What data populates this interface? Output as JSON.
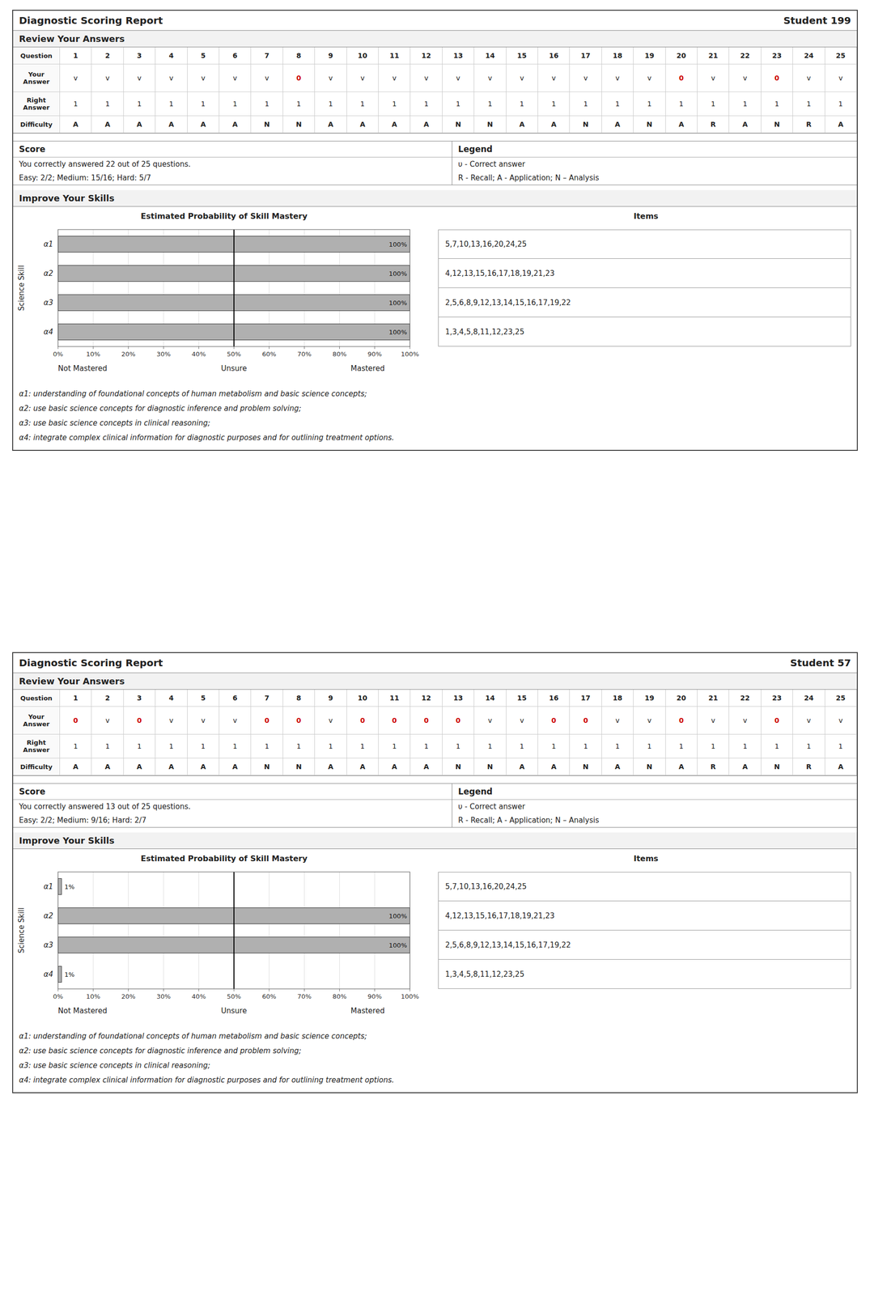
{
  "chart_data": [
    {
      "type": "bar",
      "orientation": "horizontal",
      "title": "Estimated Probability of Skill Mastery",
      "y_label": "Science Skill",
      "categories": [
        "α4",
        "α3",
        "α2",
        "α1"
      ],
      "values": [
        100,
        100,
        100,
        100
      ],
      "value_labels": [
        "100%",
        "100%",
        "100%",
        "100%"
      ],
      "data_labels": true,
      "color": "#b0b0b0",
      "xlim": [
        0,
        100
      ],
      "xticks": [
        {
          "value": 0,
          "label": "0%"
        },
        {
          "value": 10,
          "label": "10%"
        },
        {
          "value": 20,
          "label": "20%"
        },
        {
          "value": 30,
          "label": "30%"
        },
        {
          "value": 40,
          "label": "40%"
        },
        {
          "value": 50,
          "label": "50%"
        },
        {
          "value": 60,
          "label": "60%"
        },
        {
          "value": 70,
          "label": "70%"
        },
        {
          "value": 80,
          "label": "80%"
        },
        {
          "value": 90,
          "label": "90%"
        },
        {
          "value": 100,
          "label": "100%"
        }
      ],
      "grid": true,
      "threshold": 50,
      "annotations": [
        "Not Mastered",
        "Unsure",
        "Mastered"
      ]
    },
    {
      "type": "bar",
      "orientation": "horizontal",
      "title": "Estimated Probability of Skill Mastery",
      "y_label": "Science Skill",
      "categories": [
        "α4",
        "α3",
        "α2",
        "α1"
      ],
      "values": [
        1,
        100,
        100,
        1
      ],
      "value_labels": [
        "1%",
        "100%",
        "100%",
        "1%"
      ],
      "data_labels": true,
      "color": "#b0b0b0",
      "xlim": [
        0,
        100
      ],
      "xticks": [
        {
          "value": 0,
          "label": "0%"
        },
        {
          "value": 10,
          "label": "10%"
        },
        {
          "value": 20,
          "label": "20%"
        },
        {
          "value": 30,
          "label": "30%"
        },
        {
          "value": 40,
          "label": "40%"
        },
        {
          "value": 50,
          "label": "50%"
        },
        {
          "value": 60,
          "label": "60%"
        },
        {
          "value": 70,
          "label": "70%"
        },
        {
          "value": 80,
          "label": "80%"
        },
        {
          "value": 90,
          "label": "90%"
        },
        {
          "value": 100,
          "label": "100%"
        }
      ],
      "grid": true,
      "threshold": 50,
      "annotations": [
        "Not Mastered",
        "Unsure",
        "Mastered"
      ]
    }
  ],
  "report": {
    "title": "Diagnostic Scoring Report",
    "section_answers": "Review Your Answers",
    "row_labels": [
      "Question",
      "Your\nAnswer",
      "Right\nAnswer",
      "Difficulty"
    ],
    "questions": [
      1,
      2,
      3,
      4,
      5,
      6,
      7,
      8,
      9,
      10,
      11,
      12,
      13,
      14,
      15,
      16,
      17,
      18,
      19,
      20,
      21,
      22,
      23,
      24,
      25
    ],
    "score_heading": "Score",
    "legend_heading": "Legend",
    "legend_lines": [
      "υ - Correct answer",
      "R - Recall;   A - Application;   N – Analysis"
    ],
    "section_skills": "Improve Your Skills",
    "items_heading": "Items",
    "skill_descriptions": [
      "α1: understanding of foundational concepts of human metabolism and basic science concepts;",
      "α2: use basic science concepts for diagnostic inference and problem solving;",
      "α3: use basic science concepts in clinical reasoning;",
      "α4: integrate complex clinical information for diagnostic purposes and for outlining treatment options."
    ],
    "wrong_color": "#cc0000",
    "students": [
      {
        "id": "Student 199",
        "answers": [
          "v",
          "v",
          "v",
          "v",
          "v",
          "v",
          "v",
          "0",
          "v",
          "v",
          "v",
          "v",
          "v",
          "v",
          "v",
          "v",
          "v",
          "v",
          "v",
          "0",
          "v",
          "v",
          "0",
          "v",
          "v"
        ],
        "right_answers": [
          1,
          1,
          1,
          1,
          1,
          1,
          1,
          1,
          1,
          1,
          1,
          1,
          1,
          1,
          1,
          1,
          1,
          1,
          1,
          1,
          1,
          1,
          1,
          1,
          1
        ],
        "wrong_indices": [
          7,
          19,
          22
        ],
        "difficulty": [
          "A",
          "A",
          "A",
          "A",
          "A",
          "A",
          "N",
          "N",
          "A",
          "A",
          "A",
          "A",
          "N",
          "N",
          "A",
          "A",
          "N",
          "A",
          "N",
          "A",
          "R",
          "A",
          "N",
          "R",
          "A"
        ],
        "score_text": "You correctly answered 22 out of 25 questions.",
        "easy_medium_hard": "Easy: 2/2;  Medium: 15/16;   Hard:  5/7",
        "items": [
          "5,7,10,13,16,20,24,25",
          "4,12,13,15,16,17,18,19,21,23",
          "2,5,6,8,9,12,13,14,15,16,17,19,22",
          "1,3,4,5,8,11,12,23,25"
        ]
      },
      {
        "id": "Student 57",
        "answers": [
          "0",
          "v",
          "0",
          "v",
          "v",
          "v",
          "0",
          "0",
          "v",
          "0",
          "0",
          "0",
          "0",
          "v",
          "v",
          "0",
          "0",
          "v",
          "v",
          "0",
          "v",
          "v",
          "0",
          "v",
          "v"
        ],
        "right_answers": [
          1,
          1,
          1,
          1,
          1,
          1,
          1,
          1,
          1,
          1,
          1,
          1,
          1,
          1,
          1,
          1,
          1,
          1,
          1,
          1,
          1,
          1,
          1,
          1,
          1
        ],
        "wrong_indices": [
          0,
          2,
          6,
          7,
          9,
          10,
          11,
          12,
          15,
          16,
          19,
          22
        ],
        "difficulty": [
          "A",
          "A",
          "A",
          "A",
          "A",
          "A",
          "N",
          "N",
          "A",
          "A",
          "A",
          "A",
          "N",
          "N",
          "A",
          "A",
          "N",
          "A",
          "N",
          "A",
          "R",
          "A",
          "N",
          "R",
          "A"
        ],
        "score_text": "You correctly answered 13 out of 25 questions.",
        "easy_medium_hard": "Easy: 2/2;  Medium: 9/16;   Hard:  2/7",
        "items": [
          "5,7,10,13,16,20,24,25",
          "4,12,13,15,16,17,18,19,21,23",
          "2,5,6,8,9,12,13,14,15,16,17,19,22",
          "1,3,4,5,8,11,12,23,25"
        ]
      }
    ]
  }
}
